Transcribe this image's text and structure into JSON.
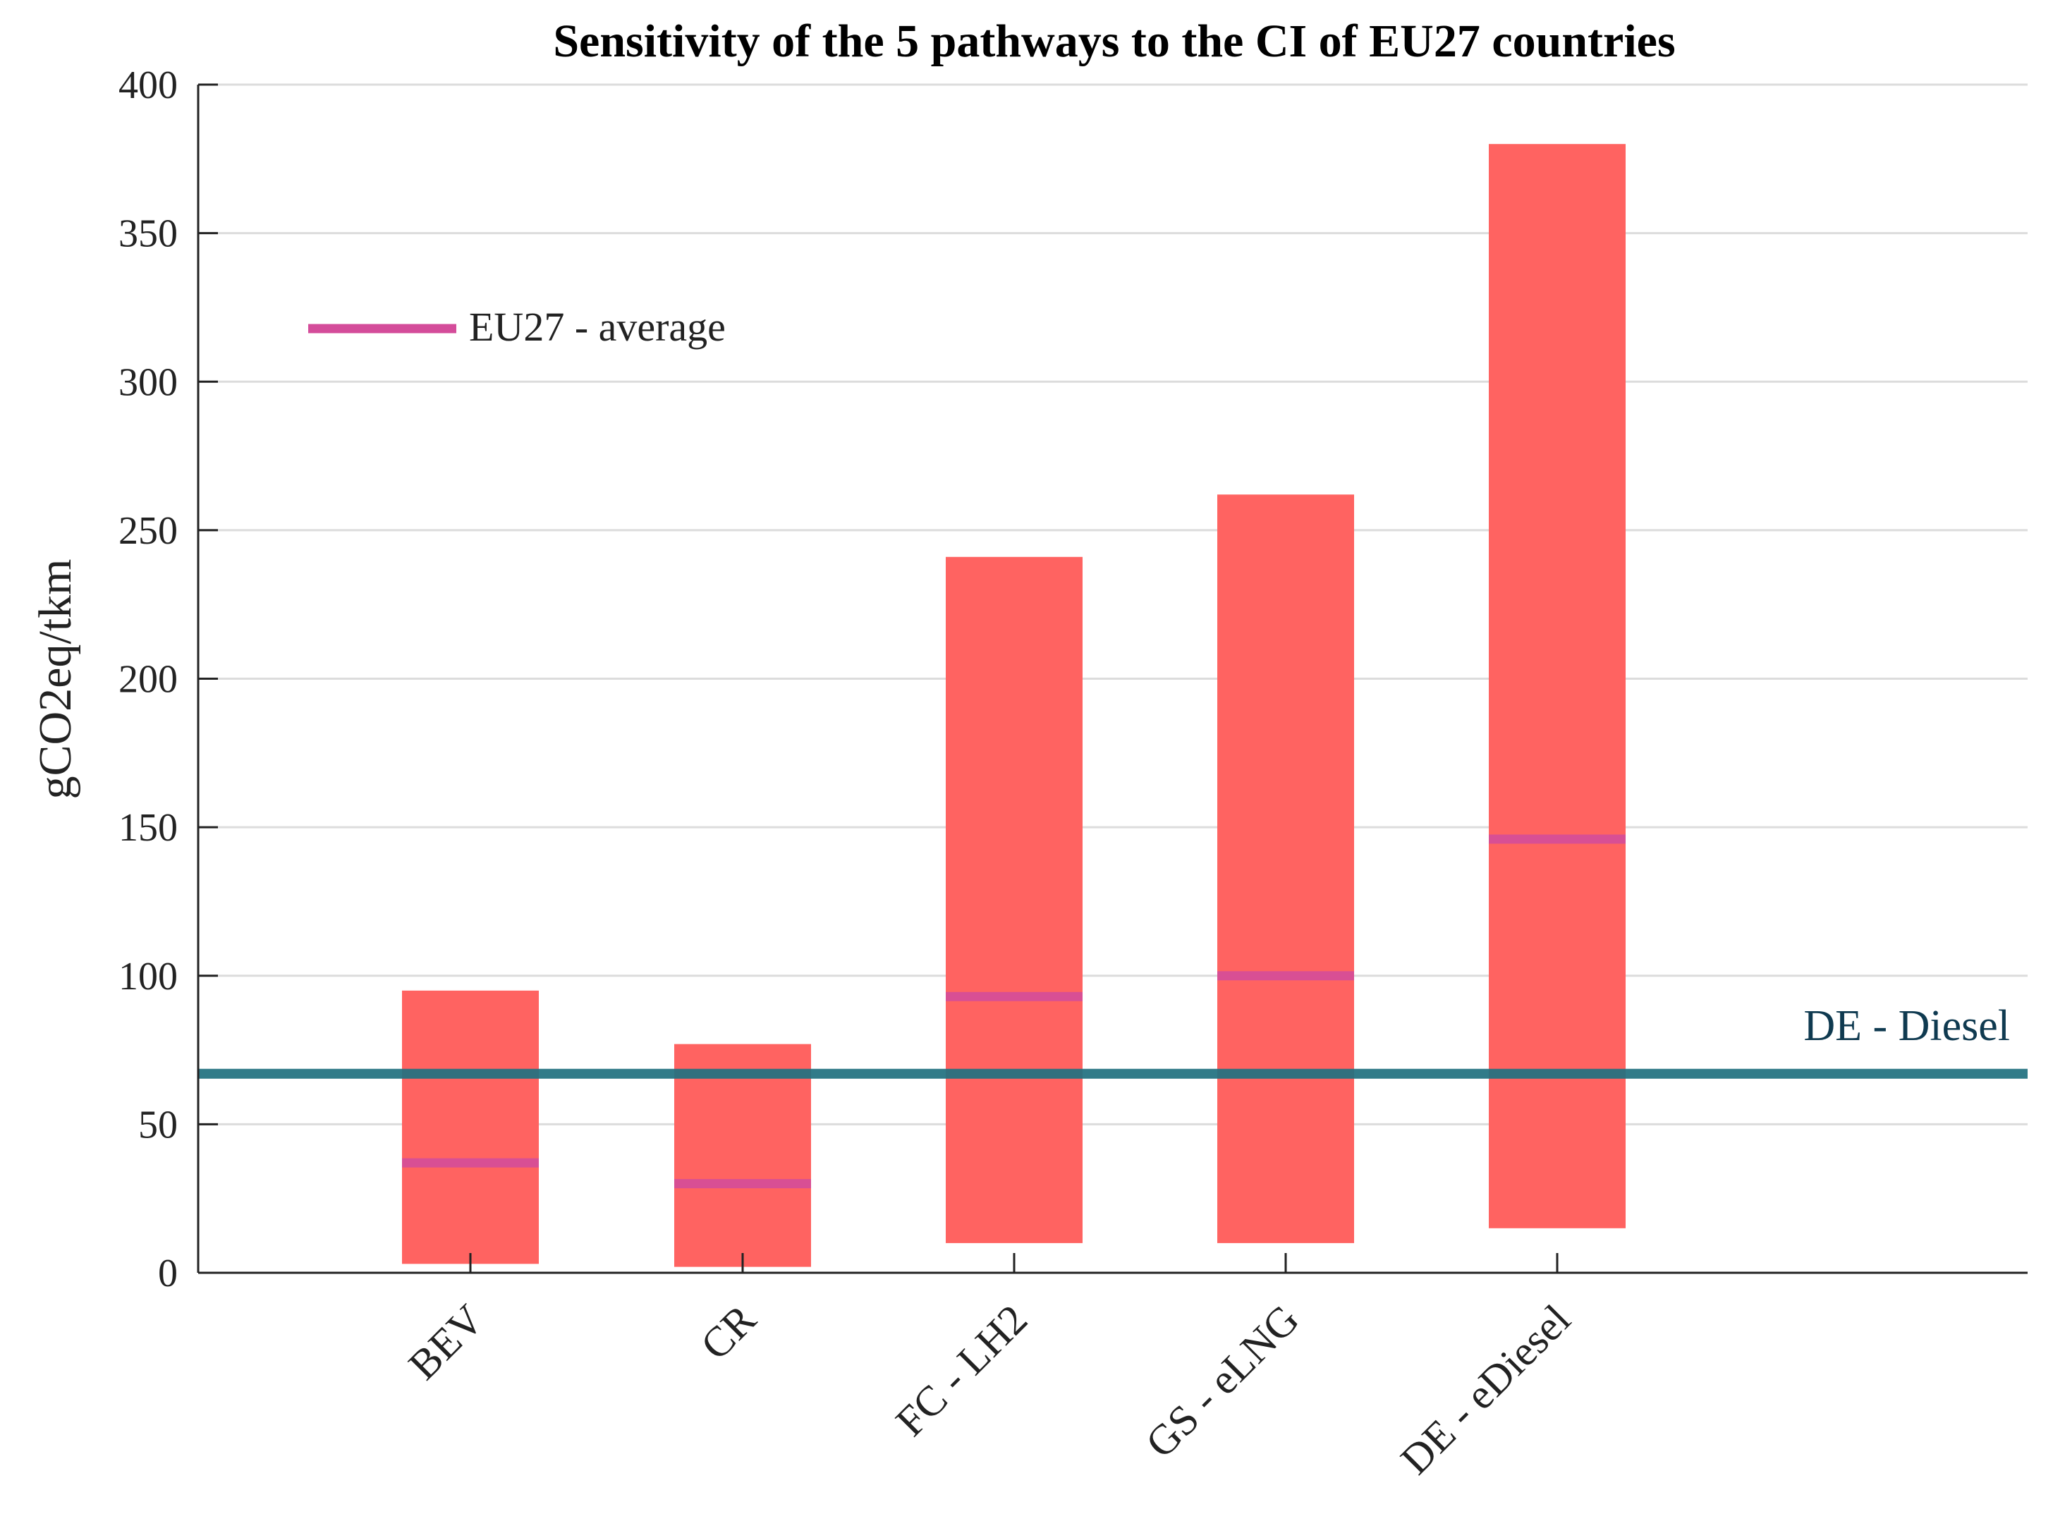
{
  "chart_data": {
    "type": "bar",
    "title": "Sensitivity of the 5 pathways to the CI of EU27 countries",
    "ylabel": "gCO2eq/tkm",
    "xlabel": "",
    "ylim": [
      0,
      400
    ],
    "yticks": [
      0,
      50,
      100,
      150,
      200,
      250,
      300,
      350,
      400
    ],
    "grid": true,
    "categories": [
      "BEV",
      "CR",
      "FC - LH2",
      "GS - eLNG",
      "DE - eDiesel"
    ],
    "ranges": [
      {
        "min": 3,
        "max": 95
      },
      {
        "min": 2,
        "max": 77
      },
      {
        "min": 10,
        "max": 241
      },
      {
        "min": 10,
        "max": 262
      },
      {
        "min": 15,
        "max": 380
      }
    ],
    "series": [
      {
        "name": "EU27 - average",
        "values": [
          37,
          30,
          93,
          100,
          146
        ]
      }
    ],
    "reference_line": {
      "label": "DE - Diesel",
      "value": 67
    },
    "legend_placement": "top-left",
    "colors": {
      "range_bar": "#ff6361",
      "average": "#d44c9a",
      "reference": "#217180",
      "reference_label": "#0f3a50"
    }
  }
}
